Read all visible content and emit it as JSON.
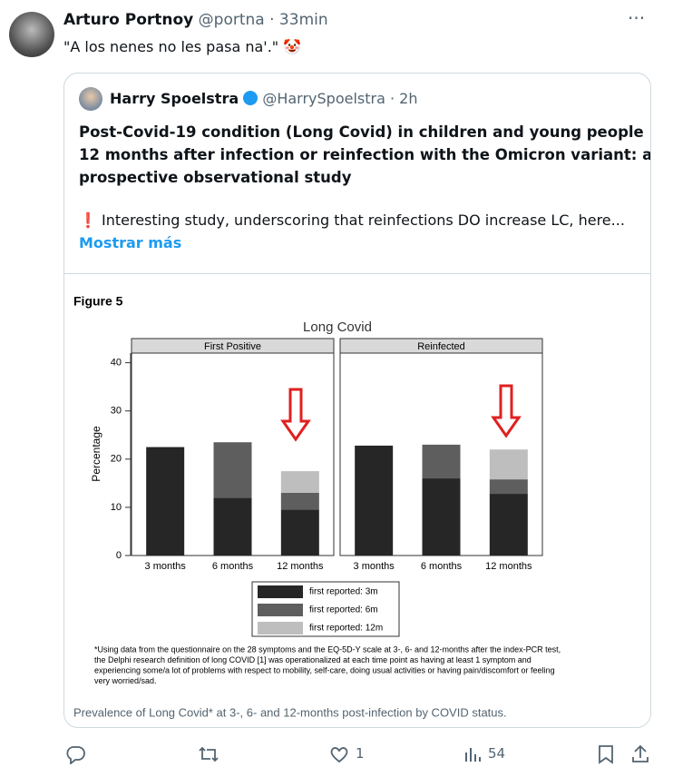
{
  "post": {
    "author": "Arturo Portnoy",
    "handle": "@portna",
    "time": "· 33min",
    "text": "\"A los nenes no les pasa na'.\" 🤡",
    "quote": {
      "author": "Harry Spoelstra",
      "handle": "@HarrySpoelstra · 2h",
      "title_lines": [
        "Post-Covid-19 condition (Long Covid) in children and young people",
        "12 months after infection or reinfection with the Omicron variant: a",
        "prospective observational study"
      ],
      "text": "❗ Interesting study, underscoring that reinfections DO increase LC, here...",
      "more": "Mostrar más"
    },
    "figure": {
      "label": "Figure 5",
      "footnote_lines": [
        "*Using data from the questionnaire on the 28 symptoms and the EQ-5D-Y scale  at 3-, 6- and 12-months after the index-PCR test,",
        "the Delphi research definition of long COVID [1] was operationalized at each time point as having at least 1 symptom and",
        "experiencing some/a lot of problems with respect to mobility, self-care, doing usual activities or having pain/discomfort or feeling",
        "very worried/sad."
      ],
      "caption": "Prevalence of Long Covid* at 3-, 6- and 12-months post-infection by COVID status."
    },
    "likes": "1",
    "views": "54"
  },
  "chart_data": {
    "type": "bar",
    "stacked": true,
    "title": "Long Covid",
    "y_label": "Percentage",
    "categories": [
      "3 months",
      "6 months",
      "12 months"
    ],
    "ylim": [
      0,
      42
    ],
    "yticks": [
      0,
      10,
      20,
      30,
      40
    ],
    "series": [
      {
        "name": "first reported: 3m",
        "color": "#262626"
      },
      {
        "name": "first reported: 6m",
        "color": "#5e5e5e"
      },
      {
        "name": "first reported: 12m",
        "color": "#bebebe"
      }
    ],
    "panels": [
      {
        "name": "First Positive",
        "values": [
          [
            22.5,
            12,
            9.5
          ],
          [
            null,
            11.5,
            3.5
          ],
          [
            null,
            null,
            4.5
          ]
        ]
      },
      {
        "name": "Reinfected",
        "values": [
          [
            22.8,
            16,
            12.8
          ],
          [
            null,
            7,
            3
          ],
          [
            null,
            null,
            6.2
          ]
        ]
      }
    ]
  }
}
